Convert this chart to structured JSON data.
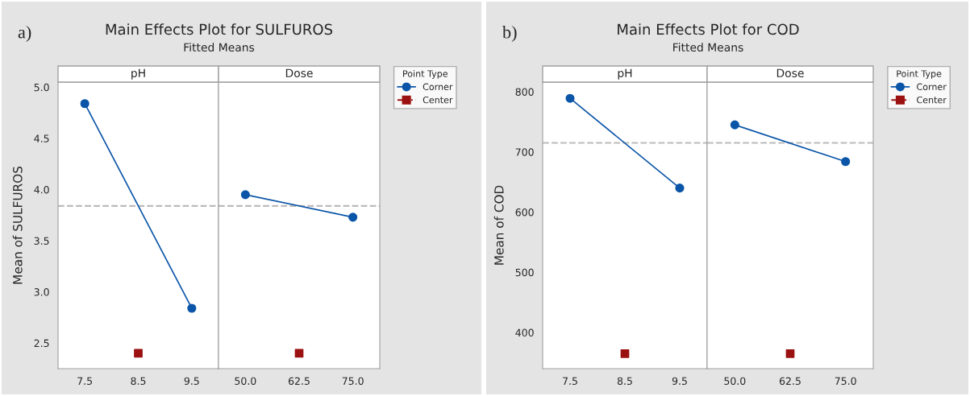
{
  "chart_data": [
    {
      "type": "line",
      "title": "Main Effects Plot for SULFUROS",
      "subtitle": "Fitted Means",
      "annotations": [
        "a)"
      ],
      "xlabel": "pH",
      "ylabel": "Mean of SULFUROS",
      "xlim": [
        7.0,
        10.0
      ],
      "xticks": [
        7.5,
        8.5,
        9.5
      ],
      "ylim": [
        2.25,
        5.05
      ],
      "yticks": [
        {
          "value": 2.5,
          "label": "2.5"
        },
        {
          "value": 3.0,
          "label": "3.0"
        },
        {
          "value": 3.5,
          "label": "3.5"
        },
        {
          "value": 4.0,
          "label": "4.0"
        },
        {
          "value": 4.5,
          "label": "4.5"
        },
        {
          "value": 5.0,
          "label": "5.0"
        }
      ],
      "series": [
        {
          "marker": "circle",
          "color": "#0b55a8",
          "x": [
            7.5,
            9.5
          ],
          "values": [
            4.84,
            2.84
          ]
        },
        {
          "type": "scatter",
          "marker": "square",
          "color": "#9b1111",
          "x": [
            8.5
          ],
          "values": [
            2.4
          ]
        }
      ],
      "ref_lines": [
        {
          "axis": "y",
          "value": 3.84,
          "color": "#bbbbbb",
          "line_style": "dashed"
        }
      ],
      "grid": false
    },
    {
      "type": "line",
      "xlabel": "Dose",
      "xlim": [
        43.75,
        81.25
      ],
      "xticks": [
        {
          "value": 50,
          "label": "50.0"
        },
        {
          "value": 62.5,
          "label": "62.5"
        },
        {
          "value": 75,
          "label": "75.0"
        }
      ],
      "ylim": [
        2.25,
        5.05
      ],
      "tick_labels": "x",
      "legend_title": "Point Type",
      "series": [
        {
          "name": "Corner",
          "marker": "circle",
          "color": "#0b55a8",
          "x": [
            50,
            75
          ],
          "values": [
            3.95,
            3.73
          ]
        },
        {
          "name": "Center",
          "type": "scatter",
          "marker": "square",
          "color": "#9b1111",
          "x": [
            62.5
          ],
          "values": [
            2.4
          ]
        }
      ],
      "ref_lines": [
        {
          "axis": "y",
          "value": 3.84,
          "color": "#bbbbbb",
          "line_style": "dashed"
        }
      ],
      "grid": false,
      "legend": "right"
    },
    {
      "type": "line",
      "title": "Main Effects Plot for COD",
      "subtitle": "Fitted Means",
      "annotations": [
        "b)"
      ],
      "xlabel": "pH",
      "ylabel": "Mean of COD",
      "xlim": [
        7.0,
        10.0
      ],
      "xticks": [
        7.5,
        8.5,
        9.5
      ],
      "ylim": [
        340,
        816
      ],
      "yticks": [
        400,
        500,
        600,
        700,
        800
      ],
      "series": [
        {
          "marker": "circle",
          "color": "#0b55a8",
          "x": [
            7.5,
            9.5
          ],
          "values": [
            789,
            640
          ]
        },
        {
          "type": "scatter",
          "marker": "square",
          "color": "#9b1111",
          "x": [
            8.5
          ],
          "values": [
            365
          ]
        }
      ],
      "ref_lines": [
        {
          "axis": "y",
          "value": 715,
          "color": "#bbbbbb",
          "line_style": "dashed"
        }
      ],
      "grid": false
    },
    {
      "type": "line",
      "xlabel": "Dose",
      "xlim": [
        43.75,
        81.25
      ],
      "xticks": [
        {
          "value": 50,
          "label": "50.0"
        },
        {
          "value": 62.5,
          "label": "62.5"
        },
        {
          "value": 75,
          "label": "75.0"
        }
      ],
      "ylim": [
        340,
        816
      ],
      "tick_labels": "x",
      "legend_title": "Point Type",
      "series": [
        {
          "name": "Corner",
          "marker": "circle",
          "color": "#0b55a8",
          "x": [
            50,
            75
          ],
          "values": [
            745,
            684
          ]
        },
        {
          "name": "Center",
          "type": "scatter",
          "marker": "square",
          "color": "#9b1111",
          "x": [
            62.5
          ],
          "values": [
            365
          ]
        }
      ],
      "ref_lines": [
        {
          "axis": "y",
          "value": 715,
          "color": "#bbbbbb",
          "line_style": "dashed"
        }
      ],
      "grid": false,
      "legend": "right"
    }
  ]
}
